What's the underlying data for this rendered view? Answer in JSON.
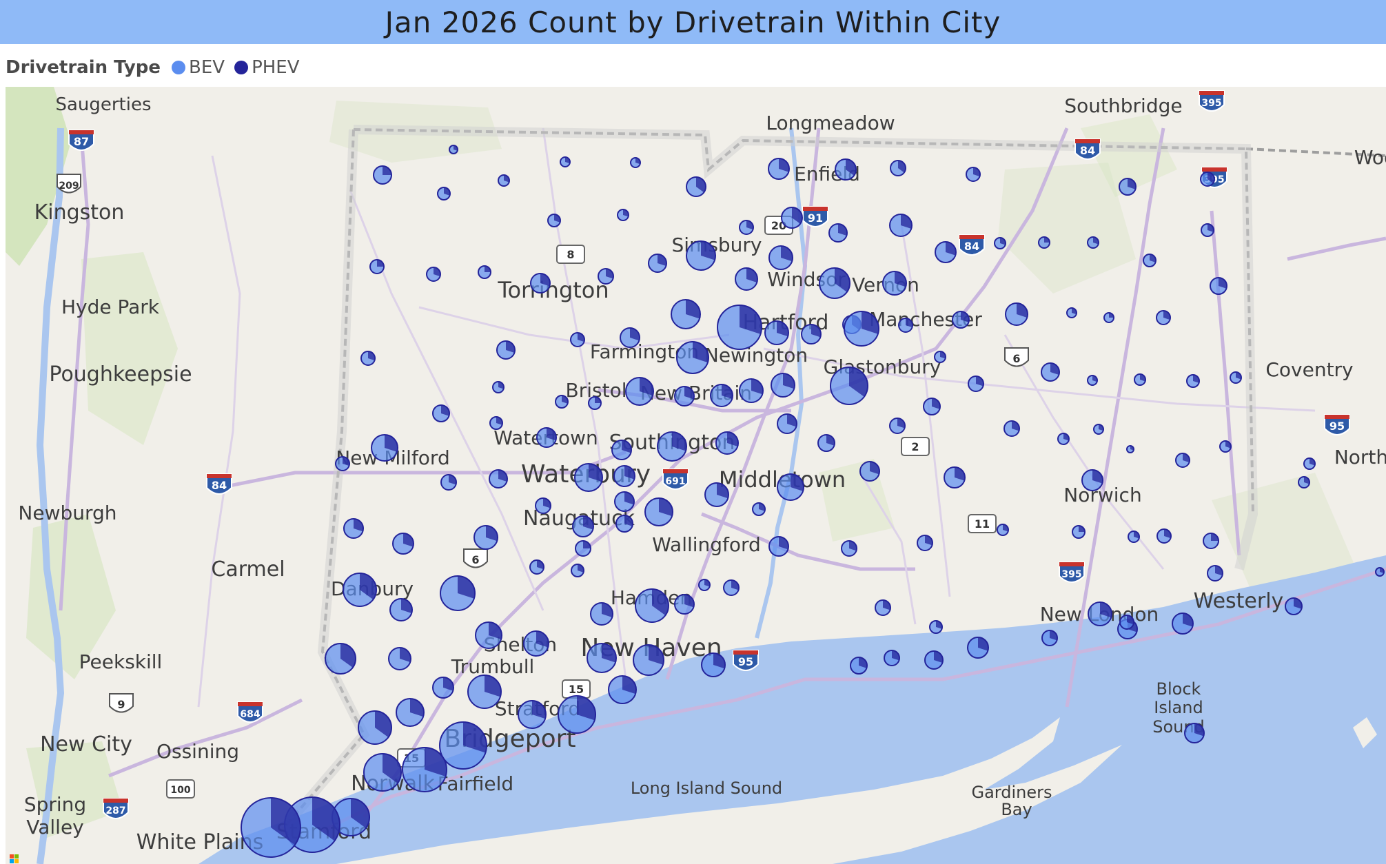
{
  "title": "Jan 2026 Count by Drivetrain Within City",
  "legend": {
    "title": "Drivetrain Type",
    "items": [
      {
        "label": "BEV",
        "color": "#5b8def"
      },
      {
        "label": "PHEV",
        "color": "#24249a"
      }
    ]
  },
  "map": {
    "places": [
      "Saugerties",
      "Kingston",
      "Hyde Park",
      "Poughkeepsie",
      "Newburgh",
      "Carmel",
      "Peekskill",
      "New City",
      "Ossining",
      "Spring",
      "Valley",
      "White Plains",
      "Stamford",
      "Norwalk",
      "Fairfield",
      "Bridgeport",
      "Stratford",
      "Trumbull",
      "Shelton",
      "New Haven",
      "Hamden",
      "Wallingford",
      "Middletown",
      "Naugatuck",
      "Waterbury",
      "Watertown",
      "Southington",
      "Bristol",
      "New Britain",
      "Newington",
      "Farmington",
      "Hartford",
      "Torrington",
      "Simsbury",
      "Windsor",
      "Enfield",
      "Longmeadow",
      "Vernon",
      "Manchester",
      "Glastonbury",
      "Norwich",
      "New London",
      "Westerly",
      "Coventry",
      "North",
      "Southbridge",
      "Woo",
      "New Milford",
      "Danbury",
      "Long Island Sound",
      "Gardiners",
      "Bay",
      "Block",
      "Island",
      "Sound"
    ],
    "shields": [
      "87",
      "209",
      "8",
      "84",
      "91",
      "20",
      "84",
      "395",
      "395",
      "6",
      "2",
      "11",
      "395",
      "691",
      "6",
      "84",
      "9",
      "684",
      "287",
      "100",
      "95",
      "15",
      "15",
      "95"
    ],
    "footer_logo": "microsoft-logo-icon"
  }
}
